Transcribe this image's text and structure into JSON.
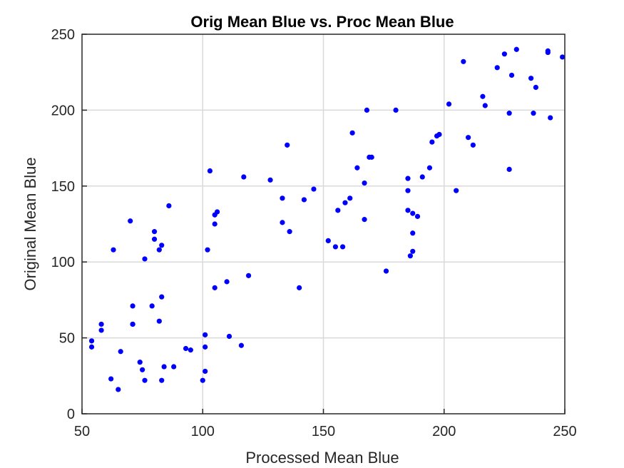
{
  "chart_data": {
    "type": "scatter",
    "title": "Orig Mean Blue vs. Proc Mean Blue",
    "xlabel": "Processed Mean Blue",
    "ylabel": "Original Mean Blue",
    "xlim": [
      50,
      250
    ],
    "ylim": [
      0,
      250
    ],
    "xticks": [
      50,
      100,
      150,
      200,
      250
    ],
    "yticks": [
      0,
      50,
      100,
      150,
      200,
      250
    ],
    "grid": true,
    "marker_color": "#0000ff",
    "points": [
      {
        "x": 54,
        "y": 44
      },
      {
        "x": 54,
        "y": 48
      },
      {
        "x": 58,
        "y": 55
      },
      {
        "x": 58,
        "y": 59
      },
      {
        "x": 62,
        "y": 23
      },
      {
        "x": 63,
        "y": 108
      },
      {
        "x": 65,
        "y": 16
      },
      {
        "x": 66,
        "y": 41
      },
      {
        "x": 70,
        "y": 127
      },
      {
        "x": 71,
        "y": 59
      },
      {
        "x": 71,
        "y": 71
      },
      {
        "x": 71,
        "y": 59
      },
      {
        "x": 74,
        "y": 34
      },
      {
        "x": 75,
        "y": 29
      },
      {
        "x": 76,
        "y": 22
      },
      {
        "x": 76,
        "y": 102
      },
      {
        "x": 79,
        "y": 71
      },
      {
        "x": 80,
        "y": 115
      },
      {
        "x": 80,
        "y": 120
      },
      {
        "x": 82,
        "y": 108
      },
      {
        "x": 82,
        "y": 61
      },
      {
        "x": 83,
        "y": 111
      },
      {
        "x": 83,
        "y": 77
      },
      {
        "x": 83,
        "y": 22
      },
      {
        "x": 84,
        "y": 31
      },
      {
        "x": 86,
        "y": 137
      },
      {
        "x": 88,
        "y": 31
      },
      {
        "x": 93,
        "y": 43
      },
      {
        "x": 95,
        "y": 42
      },
      {
        "x": 100,
        "y": 22
      },
      {
        "x": 101,
        "y": 28
      },
      {
        "x": 101,
        "y": 44
      },
      {
        "x": 101,
        "y": 52
      },
      {
        "x": 102,
        "y": 108
      },
      {
        "x": 103,
        "y": 160
      },
      {
        "x": 105,
        "y": 125
      },
      {
        "x": 105,
        "y": 131
      },
      {
        "x": 105,
        "y": 83
      },
      {
        "x": 106,
        "y": 133
      },
      {
        "x": 110,
        "y": 87
      },
      {
        "x": 111,
        "y": 51
      },
      {
        "x": 116,
        "y": 45
      },
      {
        "x": 117,
        "y": 156
      },
      {
        "x": 119,
        "y": 91
      },
      {
        "x": 128,
        "y": 154
      },
      {
        "x": 133,
        "y": 142
      },
      {
        "x": 133,
        "y": 126
      },
      {
        "x": 135,
        "y": 177
      },
      {
        "x": 136,
        "y": 120
      },
      {
        "x": 140,
        "y": 83
      },
      {
        "x": 142,
        "y": 141
      },
      {
        "x": 146,
        "y": 148
      },
      {
        "x": 152,
        "y": 114
      },
      {
        "x": 155,
        "y": 110
      },
      {
        "x": 156,
        "y": 134
      },
      {
        "x": 158,
        "y": 110
      },
      {
        "x": 159,
        "y": 139
      },
      {
        "x": 161,
        "y": 142
      },
      {
        "x": 162,
        "y": 185
      },
      {
        "x": 164,
        "y": 162
      },
      {
        "x": 167,
        "y": 152
      },
      {
        "x": 167,
        "y": 128
      },
      {
        "x": 168,
        "y": 200
      },
      {
        "x": 169,
        "y": 169
      },
      {
        "x": 170,
        "y": 169
      },
      {
        "x": 176,
        "y": 94
      },
      {
        "x": 180,
        "y": 200
      },
      {
        "x": 185,
        "y": 147
      },
      {
        "x": 185,
        "y": 155
      },
      {
        "x": 185,
        "y": 134
      },
      {
        "x": 186,
        "y": 104
      },
      {
        "x": 187,
        "y": 107
      },
      {
        "x": 187,
        "y": 119
      },
      {
        "x": 187,
        "y": 132
      },
      {
        "x": 189,
        "y": 130
      },
      {
        "x": 191,
        "y": 156
      },
      {
        "x": 194,
        "y": 162
      },
      {
        "x": 195,
        "y": 179
      },
      {
        "x": 197,
        "y": 183
      },
      {
        "x": 198,
        "y": 184
      },
      {
        "x": 202,
        "y": 204
      },
      {
        "x": 205,
        "y": 147
      },
      {
        "x": 208,
        "y": 232
      },
      {
        "x": 210,
        "y": 182
      },
      {
        "x": 212,
        "y": 177
      },
      {
        "x": 216,
        "y": 209
      },
      {
        "x": 217,
        "y": 203
      },
      {
        "x": 222,
        "y": 228
      },
      {
        "x": 225,
        "y": 237
      },
      {
        "x": 227,
        "y": 161
      },
      {
        "x": 227,
        "y": 198
      },
      {
        "x": 228,
        "y": 223
      },
      {
        "x": 230,
        "y": 240
      },
      {
        "x": 236,
        "y": 221
      },
      {
        "x": 237,
        "y": 198
      },
      {
        "x": 238,
        "y": 215
      },
      {
        "x": 243,
        "y": 239
      },
      {
        "x": 243,
        "y": 238
      },
      {
        "x": 244,
        "y": 195
      },
      {
        "x": 249,
        "y": 235
      }
    ]
  }
}
